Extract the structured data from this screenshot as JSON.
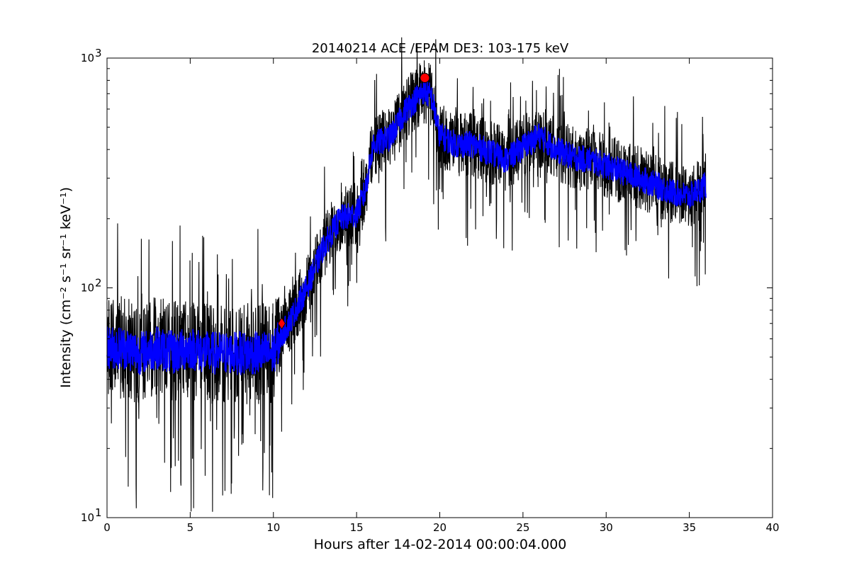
{
  "chart_data": {
    "type": "line",
    "title": "20140214 ACE /EPAM DE3: 103-175 keV",
    "xlabel": "Hours after 14-02-2014 00:00:04.000",
    "ylabel": "Intensity (cm⁻² s⁻¹ sr⁻¹ keV⁻¹)",
    "xlim": [
      0,
      40
    ],
    "ylim": [
      10,
      1000
    ],
    "yscale": "log",
    "grid": false,
    "x_ticks": [
      0,
      5,
      10,
      15,
      20,
      25,
      30,
      35,
      40
    ],
    "x_tick_labels": [
      "0",
      "5",
      "10",
      "15",
      "20",
      "25",
      "30",
      "35",
      "40"
    ],
    "y_ticks": [
      10,
      100,
      1000
    ],
    "y_tick_labels": [
      "10",
      "10",
      "10"
    ],
    "y_tick_exponents": [
      "1",
      "2",
      "3"
    ],
    "series": [
      {
        "role": "raw",
        "color": "#000000",
        "x": [
          0,
          1,
          2,
          3,
          4,
          5,
          6,
          7,
          8,
          9,
          10,
          10.5,
          11,
          12,
          13,
          14,
          15,
          15.5,
          16,
          17,
          18,
          19,
          19.5,
          20,
          21,
          22,
          23,
          24,
          25,
          26,
          27,
          28,
          29,
          30,
          31,
          32,
          33,
          34,
          35,
          36
        ],
        "y": [
          55,
          55,
          52,
          55,
          52,
          55,
          52,
          52,
          52,
          52,
          52,
          62,
          72,
          100,
          150,
          200,
          210,
          260,
          420,
          450,
          600,
          720,
          680,
          460,
          420,
          420,
          390,
          360,
          410,
          460,
          400,
          370,
          360,
          340,
          320,
          300,
          280,
          260,
          250,
          280
        ]
      },
      {
        "role": "smoothed",
        "color": "#0000ff",
        "x": [
          0,
          1,
          2,
          3,
          4,
          5,
          6,
          7,
          8,
          9,
          10,
          10.5,
          11,
          12,
          13,
          14,
          15,
          15.5,
          16,
          17,
          18,
          19,
          19.5,
          20,
          21,
          22,
          23,
          24,
          25,
          26,
          27,
          28,
          29,
          30,
          31,
          32,
          33,
          34,
          35,
          36
        ],
        "y": [
          55,
          55,
          52,
          55,
          52,
          55,
          52,
          52,
          52,
          52,
          52,
          62,
          72,
          100,
          150,
          200,
          210,
          260,
          420,
          450,
          600,
          720,
          680,
          460,
          420,
          420,
          390,
          360,
          410,
          460,
          400,
          370,
          360,
          340,
          320,
          300,
          280,
          260,
          250,
          280
        ]
      }
    ],
    "markers": [
      {
        "shape": "diamond",
        "color": "#ff0000",
        "x": 10.5,
        "y": 70
      },
      {
        "shape": "circle",
        "color": "#ff0000",
        "x": 19.1,
        "y": 820
      }
    ]
  }
}
